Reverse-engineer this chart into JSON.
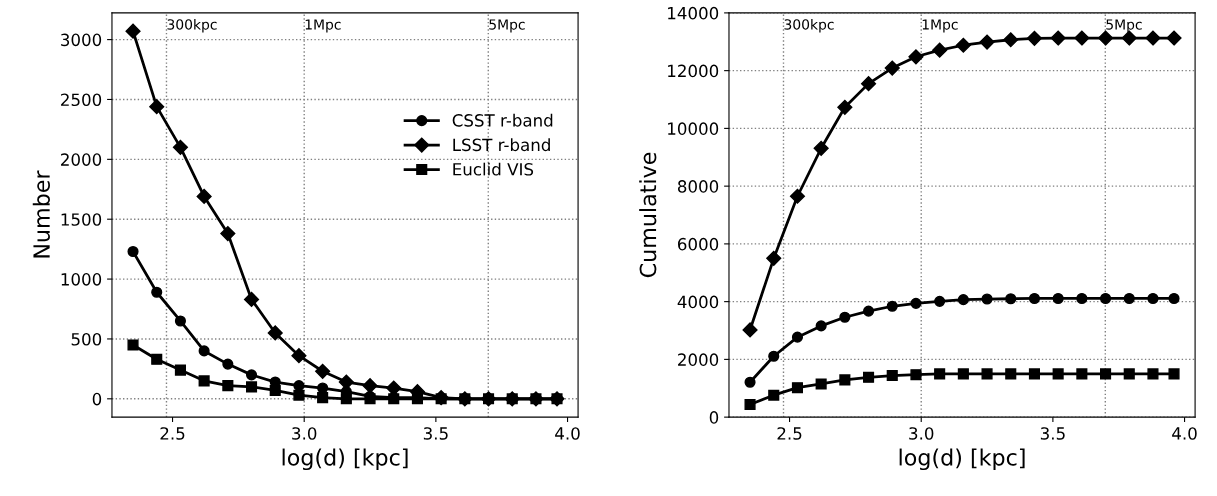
{
  "chart_data": [
    {
      "type": "line",
      "ylabel": "Number",
      "xlabel": "log(d) [kpc]",
      "x": [
        2.35,
        2.44,
        2.53,
        2.62,
        2.71,
        2.8,
        2.89,
        2.98,
        3.07,
        3.16,
        3.25,
        3.34,
        3.43,
        3.52,
        3.61,
        3.7,
        3.79,
        3.88,
        3.96
      ],
      "series": [
        {
          "name": "CSST r-band",
          "color": "#000000",
          "marker": "circle",
          "values": [
            1230,
            890,
            650,
            400,
            290,
            200,
            140,
            110,
            90,
            60,
            20,
            10,
            10,
            0,
            0,
            0,
            0,
            0,
            0
          ]
        },
        {
          "name": "LSST r-band",
          "color": "#000000",
          "marker": "diamond",
          "values": [
            3070,
            2440,
            2100,
            1690,
            1380,
            830,
            550,
            360,
            230,
            140,
            110,
            90,
            60,
            10,
            0,
            0,
            0,
            0,
            0
          ]
        },
        {
          "name": "Euclid VIS",
          "color": "#000000",
          "marker": "square",
          "values": [
            450,
            330,
            240,
            150,
            110,
            100,
            70,
            30,
            10,
            0,
            0,
            0,
            0,
            0,
            0,
            0,
            0,
            0,
            0
          ]
        }
      ],
      "xlim": [
        2.27,
        4.04
      ],
      "xticks": [
        {
          "value": 2.5,
          "label": "2.5"
        },
        {
          "value": 3.0,
          "label": "3.0"
        },
        {
          "value": 3.5,
          "label": "3.5"
        },
        {
          "value": 4.0,
          "label": "4.0"
        }
      ],
      "ylim": [
        -153,
        3223
      ],
      "yticks": [
        0,
        500,
        1000,
        1500,
        2000,
        2500,
        3000
      ],
      "grid": "y",
      "legend": "right",
      "line_style": "solid",
      "ref_lines": [
        {
          "axis": "x",
          "value": 2.477,
          "label": "300kpc",
          "color": "#808080",
          "line_style": "dotted"
        },
        {
          "axis": "x",
          "value": 3.0,
          "label": "1Mpc",
          "color": "#808080",
          "line_style": "dotted"
        },
        {
          "axis": "x",
          "value": 3.699,
          "label": "5Mpc",
          "color": "#808080",
          "line_style": "dotted"
        }
      ]
    },
    {
      "type": "line",
      "ylabel": "Cumulative",
      "xlabel": "log(d) [kpc]",
      "x": [
        2.35,
        2.44,
        2.53,
        2.62,
        2.71,
        2.8,
        2.89,
        2.98,
        3.07,
        3.16,
        3.25,
        3.34,
        3.43,
        3.52,
        3.61,
        3.7,
        3.79,
        3.88,
        3.96
      ],
      "series": [
        {
          "color": "#000000",
          "marker": "circle",
          "values": [
            1210,
            2110,
            2770,
            3160,
            3460,
            3670,
            3840,
            3940,
            4010,
            4070,
            4090,
            4100,
            4110,
            4110,
            4110,
            4110,
            4110,
            4110,
            4110
          ]
        },
        {
          "color": "#000000",
          "marker": "diamond",
          "values": [
            3020,
            5500,
            7650,
            9310,
            10730,
            11550,
            12090,
            12480,
            12710,
            12880,
            12990,
            13070,
            13120,
            13130,
            13130,
            13130,
            13130,
            13130,
            13130
          ]
        },
        {
          "color": "#000000",
          "marker": "square",
          "values": [
            440,
            760,
            1020,
            1150,
            1290,
            1380,
            1440,
            1470,
            1500,
            1500,
            1500,
            1500,
            1500,
            1500,
            1500,
            1500,
            1500,
            1500,
            1500
          ]
        }
      ],
      "xlim": [
        2.27,
        4.04
      ],
      "xticks": [
        2.5,
        {
          "value": 3.0,
          "label": "3.0"
        },
        3.5,
        {
          "value": 4.0,
          "label": "4.0"
        }
      ],
      "ylim": [
        0,
        14000
      ],
      "yticks": [
        0,
        2000,
        4000,
        6000,
        8000,
        10000,
        12000,
        14000
      ],
      "grid": "y",
      "line_style": "solid",
      "ref_lines": [
        {
          "axis": "x",
          "value": 2.477,
          "label": "300kpc",
          "color": "#808080",
          "line_style": "dotted"
        },
        {
          "axis": "x",
          "value": 3.0,
          "label": "1Mpc",
          "color": "#808080",
          "line_style": "dotted"
        },
        {
          "axis": "x",
          "value": 3.699,
          "label": "5Mpc",
          "color": "#808080",
          "line_style": "dotted"
        }
      ]
    }
  ]
}
